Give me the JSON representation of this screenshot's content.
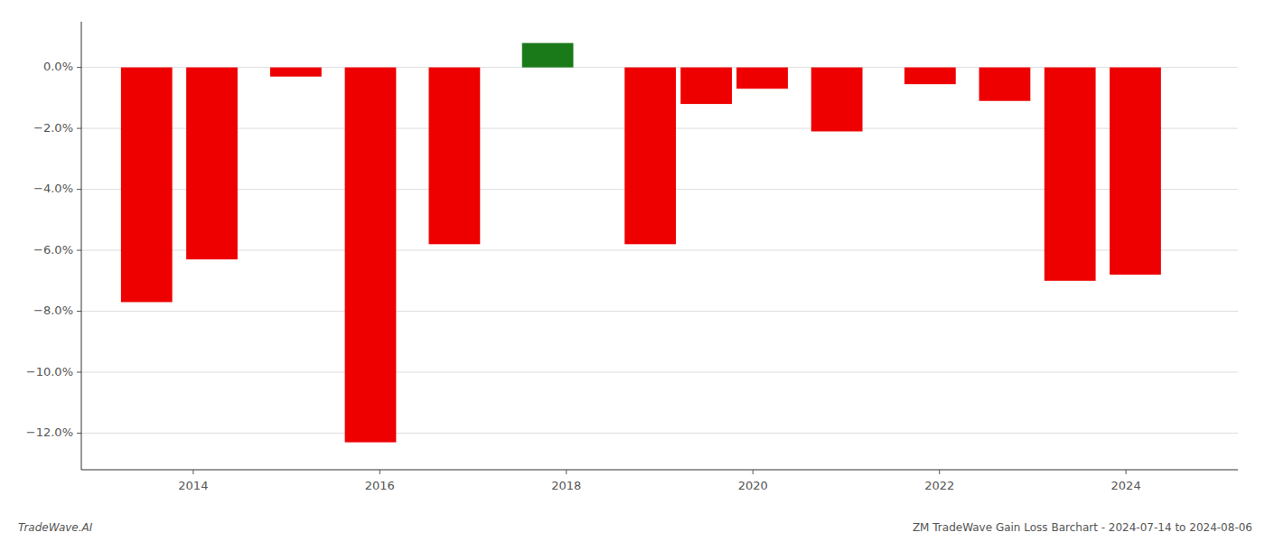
{
  "chart_data": {
    "type": "bar",
    "x": [
      2013.5,
      2014.2,
      2015.1,
      2015.9,
      2016.8,
      2017.8,
      2018.9,
      2019.5,
      2020.1,
      2020.9,
      2021.9,
      2022.7,
      2023.4,
      2024.1
    ],
    "values": [
      -7.7,
      -6.3,
      -0.3,
      -12.3,
      -5.8,
      0.8,
      -5.8,
      -1.2,
      -0.7,
      -2.1,
      -0.55,
      -1.1,
      -7.0,
      -6.8
    ],
    "colors": [
      "#ee0000",
      "#ee0000",
      "#ee0000",
      "#ee0000",
      "#ee0000",
      "#1a7a1a",
      "#ee0000",
      "#ee0000",
      "#ee0000",
      "#ee0000",
      "#ee0000",
      "#ee0000",
      "#ee0000",
      "#ee0000"
    ],
    "xlim": [
      2012.8,
      2025.2
    ],
    "xticks": [
      2014,
      2016,
      2018,
      2020,
      2022,
      2024
    ],
    "ylim": [
      -13.2,
      1.5
    ],
    "yticks": [
      {
        "value": 0.0,
        "label": "0.0%"
      },
      {
        "value": -2.0,
        "label": "−2.0%"
      },
      {
        "value": -4.0,
        "label": "−4.0%"
      },
      {
        "value": -6.0,
        "label": "−6.0%"
      },
      {
        "value": -8.0,
        "label": "−8.0%"
      },
      {
        "value": -10.0,
        "label": "−10.0%"
      },
      {
        "value": -12.0,
        "label": "−12.0%"
      }
    ],
    "grid": true,
    "annotations": [
      "TradeWave.AI",
      "ZM TradeWave Gain Loss Barchart - 2024-07-14 to 2024-08-06"
    ]
  }
}
